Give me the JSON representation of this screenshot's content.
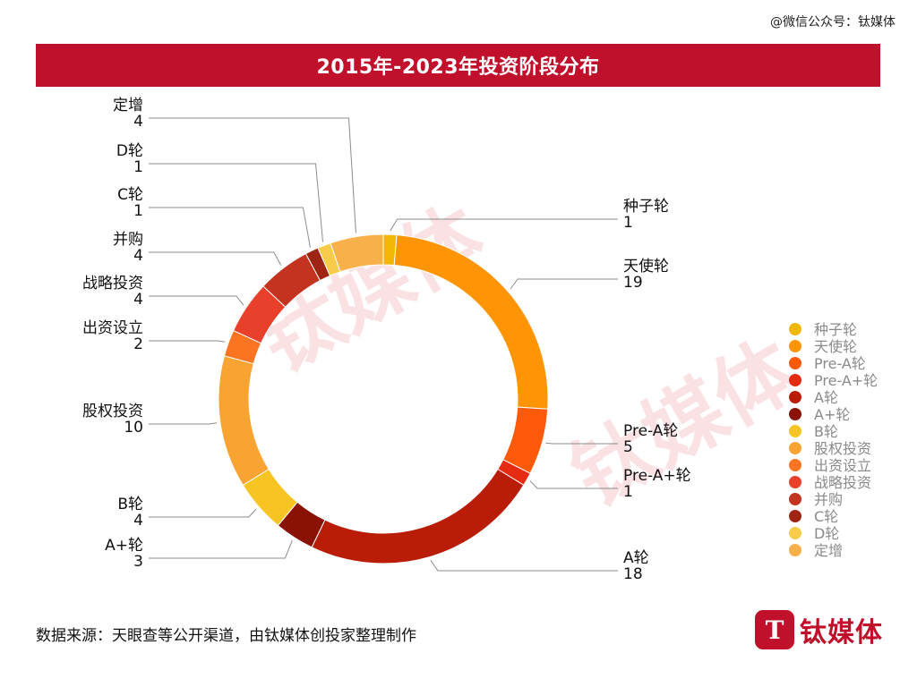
{
  "watermark_header": "@微信公众号：钛媒体",
  "title": "2015年-2023年投资阶段分布",
  "source": "数据来源：天眼查等公开渠道，由钛媒体创投家整理制作",
  "brand": {
    "logo_letter": "T",
    "name": "钛媒体"
  },
  "watermark": {
    "text": "钛媒体"
  },
  "chart_data": {
    "type": "donut",
    "title": "2015年-2023年投资阶段分布",
    "categories": [
      "种子轮",
      "天使轮",
      "Pre-A轮",
      "Pre-A+轮",
      "A轮",
      "A+轮",
      "B轮",
      "股权投资",
      "出资设立",
      "战略投资",
      "并购",
      "C轮",
      "D轮",
      "定增"
    ],
    "values": [
      1,
      19,
      5,
      1,
      18,
      3,
      4,
      10,
      2,
      4,
      4,
      1,
      1,
      4
    ],
    "colors": [
      "#f2b705",
      "#ff9505",
      "#ff5a0a",
      "#e52b12",
      "#b91c07",
      "#8a1205",
      "#f8c424",
      "#f9a432",
      "#fb7421",
      "#e9402b",
      "#c33320",
      "#9e2414",
      "#f8cc4a",
      "#f7b04a"
    ],
    "legend_position": "right",
    "data_labels": true
  }
}
